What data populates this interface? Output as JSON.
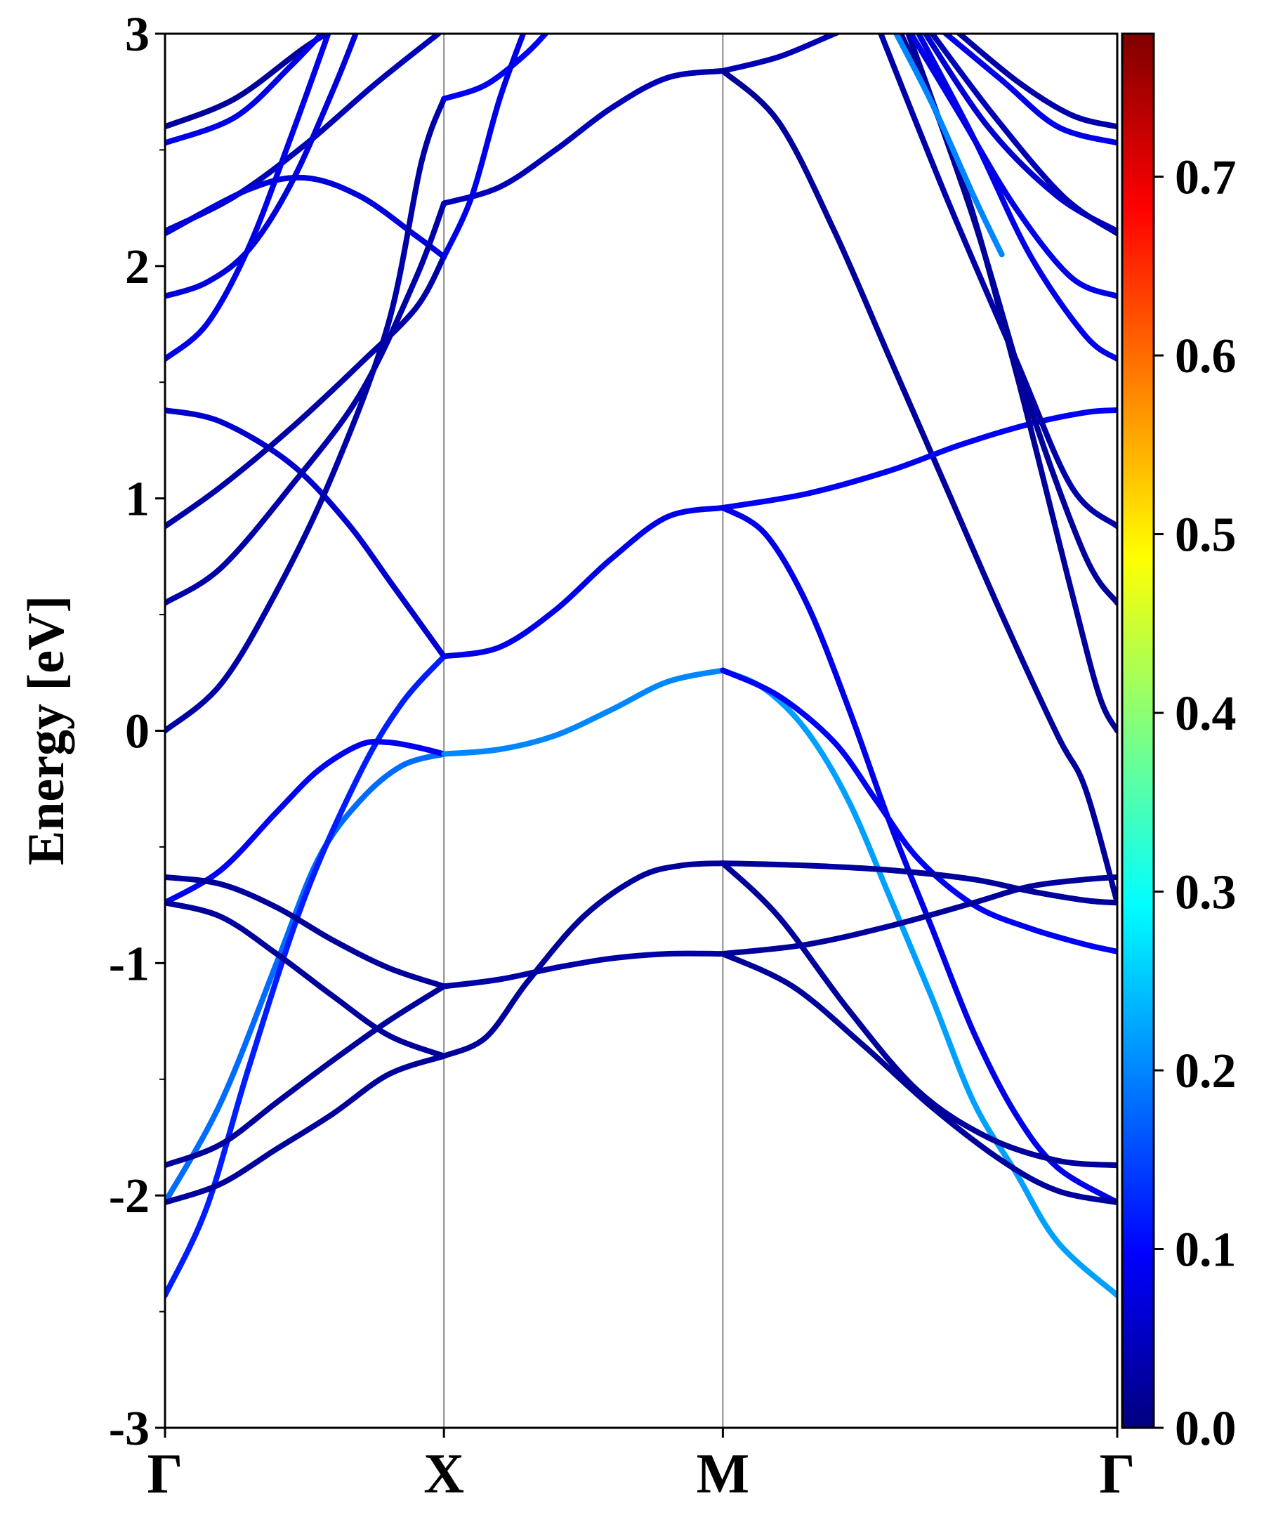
{
  "chart_data": {
    "type": "line",
    "title": "",
    "ylabel": "Energy [eV]",
    "xlabel": "",
    "ylim": [
      -3,
      3
    ],
    "yticks": [
      "3",
      "2",
      "1",
      "0",
      "-1",
      "-2",
      "-3"
    ],
    "kpath": {
      "labels": [
        "Γ",
        "X",
        "M",
        "Γ"
      ],
      "positions": [
        0,
        1,
        2,
        3.414
      ]
    },
    "grid": false,
    "colorbar": {
      "colormap": "jet",
      "range": [
        0.0,
        0.78
      ],
      "ticks": [
        "0.0",
        "0.1",
        "0.2",
        "0.3",
        "0.4",
        "0.5",
        "0.6",
        "0.7"
      ]
    },
    "bands": [
      {
        "weight": 0.02,
        "points": [
          [
            0,
            2.6
          ],
          [
            0.25,
            2.72
          ],
          [
            0.5,
            2.94
          ],
          [
            0.65,
            3.05
          ]
        ]
      },
      {
        "weight": 0.08,
        "points": [
          [
            0,
            2.53
          ],
          [
            0.25,
            2.64
          ],
          [
            0.45,
            2.86
          ],
          [
            0.6,
            3.05
          ]
        ]
      },
      {
        "weight": 0.04,
        "points": [
          [
            0,
            2.15
          ],
          [
            0.25,
            2.3
          ],
          [
            0.5,
            2.52
          ],
          [
            0.75,
            2.78
          ],
          [
            0.98,
            3.0
          ]
        ]
      },
      {
        "weight": 0.07,
        "points": [
          [
            0,
            2.14
          ],
          [
            0.3,
            2.33
          ],
          [
            0.5,
            2.38
          ],
          [
            0.7,
            2.3
          ],
          [
            0.9,
            2.13
          ],
          [
            1,
            2.04
          ]
        ]
      },
      {
        "weight": 0.07,
        "points": [
          [
            0,
            1.87
          ],
          [
            0.15,
            1.93
          ],
          [
            0.3,
            2.07
          ],
          [
            0.45,
            2.35
          ],
          [
            0.6,
            2.75
          ],
          [
            0.7,
            3.05
          ]
        ]
      },
      {
        "weight": 0.08,
        "points": [
          [
            0,
            1.6
          ],
          [
            0.15,
            1.75
          ],
          [
            0.3,
            2.08
          ],
          [
            0.45,
            2.55
          ],
          [
            0.6,
            3.05
          ]
        ]
      },
      {
        "weight": 0.06,
        "points": [
          [
            0,
            1.38
          ],
          [
            0.2,
            1.33
          ],
          [
            0.45,
            1.15
          ],
          [
            0.65,
            0.9
          ],
          [
            0.82,
            0.62
          ],
          [
            1,
            0.32
          ]
        ]
      },
      {
        "weight": 0.03,
        "points": [
          [
            0,
            0.88
          ],
          [
            0.2,
            1.05
          ],
          [
            0.45,
            1.3
          ],
          [
            0.7,
            1.58
          ],
          [
            0.9,
            1.82
          ],
          [
            1,
            2.04
          ]
        ]
      },
      {
        "weight": 0.03,
        "points": [
          [
            0,
            0.55
          ],
          [
            0.2,
            0.7
          ],
          [
            0.45,
            1.05
          ],
          [
            0.7,
            1.45
          ],
          [
            0.9,
            1.95
          ],
          [
            1,
            2.27
          ]
        ]
      },
      {
        "weight": 0.03,
        "points": [
          [
            0,
            0.0
          ],
          [
            0.2,
            0.2
          ],
          [
            0.4,
            0.6
          ],
          [
            0.6,
            1.1
          ],
          [
            0.8,
            1.75
          ],
          [
            0.92,
            2.45
          ],
          [
            1,
            2.72
          ]
        ]
      },
      {
        "weight": 0.18,
        "points": [
          [
            0,
            -2.03
          ],
          [
            0.2,
            -1.6
          ],
          [
            0.4,
            -1.0
          ],
          [
            0.55,
            -0.55
          ],
          [
            0.7,
            -0.3
          ],
          [
            0.85,
            -0.15
          ],
          [
            1,
            -0.1
          ]
        ]
      },
      {
        "weight": 0.12,
        "points": [
          [
            0,
            -2.43
          ],
          [
            0.15,
            -2.05
          ],
          [
            0.3,
            -1.45
          ],
          [
            0.5,
            -0.72
          ],
          [
            0.7,
            -0.18
          ],
          [
            0.85,
            0.12
          ],
          [
            1,
            0.32
          ]
        ]
      },
      {
        "weight": 0.09,
        "points": [
          [
            0,
            -0.74
          ],
          [
            0.2,
            -0.6
          ],
          [
            0.4,
            -0.35
          ],
          [
            0.55,
            -0.17
          ],
          [
            0.7,
            -0.06
          ],
          [
            0.8,
            -0.05
          ],
          [
            0.9,
            -0.07
          ],
          [
            1,
            -0.1
          ]
        ]
      },
      {
        "weight": 0.02,
        "points": [
          [
            0,
            -0.63
          ],
          [
            0.2,
            -0.66
          ],
          [
            0.4,
            -0.76
          ],
          [
            0.6,
            -0.9
          ],
          [
            0.8,
            -1.02
          ],
          [
            1,
            -1.1
          ]
        ]
      },
      {
        "weight": 0.02,
        "points": [
          [
            0,
            -0.74
          ],
          [
            0.2,
            -0.8
          ],
          [
            0.4,
            -0.96
          ],
          [
            0.6,
            -1.14
          ],
          [
            0.8,
            -1.31
          ],
          [
            1,
            -1.4
          ]
        ]
      },
      {
        "weight": 0.02,
        "points": [
          [
            0,
            -1.87
          ],
          [
            0.2,
            -1.78
          ],
          [
            0.4,
            -1.6
          ],
          [
            0.6,
            -1.42
          ],
          [
            0.8,
            -1.25
          ],
          [
            1,
            -1.1
          ]
        ]
      },
      {
        "weight": 0.02,
        "points": [
          [
            0,
            -2.03
          ],
          [
            0.2,
            -1.95
          ],
          [
            0.4,
            -1.8
          ],
          [
            0.6,
            -1.65
          ],
          [
            0.8,
            -1.48
          ],
          [
            1,
            -1.4
          ]
        ]
      },
      {
        "weight": 0.04,
        "points": [
          [
            1,
            2.27
          ],
          [
            1.2,
            2.34
          ],
          [
            1.4,
            2.5
          ],
          [
            1.6,
            2.68
          ],
          [
            1.8,
            2.81
          ],
          [
            2,
            2.84
          ]
        ]
      },
      {
        "weight": 0.09,
        "points": [
          [
            1,
            2.72
          ],
          [
            1.15,
            2.78
          ],
          [
            1.3,
            2.92
          ],
          [
            1.4,
            3.05
          ]
        ]
      },
      {
        "weight": 0.08,
        "points": [
          [
            1,
            2.04
          ],
          [
            1.1,
            2.3
          ],
          [
            1.2,
            2.72
          ],
          [
            1.3,
            3.05
          ]
        ]
      },
      {
        "weight": 0.08,
        "points": [
          [
            1,
            0.32
          ],
          [
            1.2,
            0.36
          ],
          [
            1.4,
            0.52
          ],
          [
            1.6,
            0.74
          ],
          [
            1.8,
            0.92
          ],
          [
            2,
            0.96
          ]
        ]
      },
      {
        "weight": 0.2,
        "points": [
          [
            1,
            -0.1
          ],
          [
            1.2,
            -0.08
          ],
          [
            1.4,
            -0.02
          ],
          [
            1.6,
            0.09
          ],
          [
            1.8,
            0.21
          ],
          [
            2,
            0.26
          ]
        ]
      },
      {
        "weight": 0.03,
        "points": [
          [
            1,
            -1.1
          ],
          [
            1.2,
            -1.07
          ],
          [
            1.4,
            -1.02
          ],
          [
            1.6,
            -0.98
          ],
          [
            1.8,
            -0.96
          ],
          [
            2,
            -0.96
          ]
        ]
      },
      {
        "weight": 0.02,
        "points": [
          [
            1,
            -1.4
          ],
          [
            1.15,
            -1.32
          ],
          [
            1.3,
            -1.08
          ],
          [
            1.5,
            -0.8
          ],
          [
            1.7,
            -0.63
          ],
          [
            1.85,
            -0.58
          ],
          [
            2,
            -0.57
          ]
        ]
      },
      {
        "weight": 0.04,
        "points": [
          [
            2,
            2.84
          ],
          [
            2.2,
            2.9
          ],
          [
            2.4,
            3.0
          ],
          [
            2.5,
            3.05
          ]
        ]
      },
      {
        "weight": 0.02,
        "points": [
          [
            2,
            2.84
          ],
          [
            2.2,
            2.62
          ],
          [
            2.4,
            2.15
          ],
          [
            2.6,
            1.6
          ],
          [
            2.8,
            1.05
          ],
          [
            3.0,
            0.5
          ],
          [
            3.2,
            -0.02
          ],
          [
            3.3,
            -0.25
          ],
          [
            3.414,
            -0.74
          ]
        ]
      },
      {
        "weight": 0.09,
        "points": [
          [
            2,
            0.96
          ],
          [
            2.3,
            1.02
          ],
          [
            2.6,
            1.12
          ],
          [
            2.85,
            1.23
          ],
          [
            3.1,
            1.32
          ],
          [
            3.3,
            1.37
          ],
          [
            3.414,
            1.38
          ]
        ]
      },
      {
        "weight": 0.08,
        "points": [
          [
            2,
            0.96
          ],
          [
            2.15,
            0.85
          ],
          [
            2.3,
            0.55
          ],
          [
            2.45,
            0.1
          ],
          [
            2.6,
            -0.4
          ],
          [
            2.75,
            -0.85
          ],
          [
            2.9,
            -1.3
          ],
          [
            3.05,
            -1.65
          ],
          [
            3.2,
            -1.88
          ],
          [
            3.414,
            -2.03
          ]
        ]
      },
      {
        "weight": 0.22,
        "points": [
          [
            2,
            0.26
          ],
          [
            2.15,
            0.18
          ],
          [
            2.3,
            0.0
          ],
          [
            2.45,
            -0.3
          ],
          [
            2.6,
            -0.72
          ],
          [
            2.75,
            -1.15
          ],
          [
            2.9,
            -1.6
          ],
          [
            3.05,
            -1.9
          ],
          [
            3.2,
            -2.2
          ],
          [
            3.414,
            -2.43
          ]
        ]
      },
      {
        "weight": 0.09,
        "points": [
          [
            2,
            0.26
          ],
          [
            2.2,
            0.15
          ],
          [
            2.4,
            -0.05
          ],
          [
            2.55,
            -0.3
          ],
          [
            2.7,
            -0.55
          ],
          [
            2.9,
            -0.75
          ],
          [
            3.1,
            -0.85
          ],
          [
            3.3,
            -0.92
          ],
          [
            3.414,
            -0.95
          ]
        ]
      },
      {
        "weight": 0.02,
        "points": [
          [
            2,
            -0.57
          ],
          [
            2.3,
            -0.58
          ],
          [
            2.6,
            -0.6
          ],
          [
            2.9,
            -0.64
          ],
          [
            3.1,
            -0.69
          ],
          [
            3.3,
            -0.73
          ],
          [
            3.414,
            -0.74
          ]
        ]
      },
      {
        "weight": 0.02,
        "points": [
          [
            2,
            -0.96
          ],
          [
            2.3,
            -0.92
          ],
          [
            2.6,
            -0.84
          ],
          [
            2.9,
            -0.74
          ],
          [
            3.1,
            -0.67
          ],
          [
            3.3,
            -0.64
          ],
          [
            3.414,
            -0.63
          ]
        ]
      },
      {
        "weight": 0.02,
        "points": [
          [
            2,
            -0.57
          ],
          [
            2.2,
            -0.8
          ],
          [
            2.45,
            -1.2
          ],
          [
            2.7,
            -1.55
          ],
          [
            2.95,
            -1.75
          ],
          [
            3.2,
            -1.85
          ],
          [
            3.414,
            -1.87
          ]
        ]
      },
      {
        "weight": 0.02,
        "points": [
          [
            2,
            -0.96
          ],
          [
            2.25,
            -1.1
          ],
          [
            2.5,
            -1.35
          ],
          [
            2.75,
            -1.62
          ],
          [
            3.0,
            -1.85
          ],
          [
            3.2,
            -1.98
          ],
          [
            3.414,
            -2.03
          ]
        ]
      },
      {
        "weight": 0.03,
        "points": [
          [
            2.55,
            3.05
          ],
          [
            2.8,
            2.3
          ],
          [
            3.05,
            1.6
          ],
          [
            3.25,
            1.05
          ],
          [
            3.414,
            0.88
          ]
        ]
      },
      {
        "weight": 0.02,
        "points": [
          [
            2.65,
            3.05
          ],
          [
            2.9,
            2.2
          ],
          [
            3.1,
            1.4
          ],
          [
            3.3,
            0.75
          ],
          [
            3.414,
            0.55
          ]
        ]
      },
      {
        "weight": 0.02,
        "points": [
          [
            2.62,
            3.05
          ],
          [
            2.85,
            2.4
          ],
          [
            3.05,
            1.55
          ],
          [
            3.25,
            0.6
          ],
          [
            3.35,
            0.15
          ],
          [
            3.414,
            0.0
          ]
        ]
      },
      {
        "weight": 0.2,
        "points": [
          [
            2.6,
            3.05
          ],
          [
            2.75,
            2.7
          ],
          [
            2.9,
            2.3
          ],
          [
            3.0,
            2.05
          ]
        ]
      },
      {
        "weight": 0.08,
        "points": [
          [
            2.65,
            3.05
          ],
          [
            2.85,
            2.65
          ],
          [
            3.05,
            2.25
          ],
          [
            3.25,
            1.95
          ],
          [
            3.414,
            1.87
          ]
        ]
      },
      {
        "weight": 0.08,
        "points": [
          [
            2.68,
            3.05
          ],
          [
            2.9,
            2.55
          ],
          [
            3.1,
            2.05
          ],
          [
            3.3,
            1.7
          ],
          [
            3.414,
            1.6
          ]
        ]
      },
      {
        "weight": 0.08,
        "points": [
          [
            2.75,
            3.05
          ],
          [
            3.0,
            2.8
          ],
          [
            3.2,
            2.6
          ],
          [
            3.414,
            2.53
          ]
        ]
      },
      {
        "weight": 0.03,
        "points": [
          [
            2.8,
            3.05
          ],
          [
            3.05,
            2.8
          ],
          [
            3.25,
            2.65
          ],
          [
            3.414,
            2.6
          ]
        ]
      },
      {
        "weight": 0.06,
        "points": [
          [
            2.7,
            3.05
          ],
          [
            2.95,
            2.6
          ],
          [
            3.2,
            2.3
          ],
          [
            3.414,
            2.15
          ]
        ]
      },
      {
        "weight": 0.04,
        "points": [
          [
            2.72,
            3.05
          ],
          [
            2.97,
            2.65
          ],
          [
            3.22,
            2.3
          ],
          [
            3.414,
            2.14
          ]
        ]
      }
    ]
  }
}
